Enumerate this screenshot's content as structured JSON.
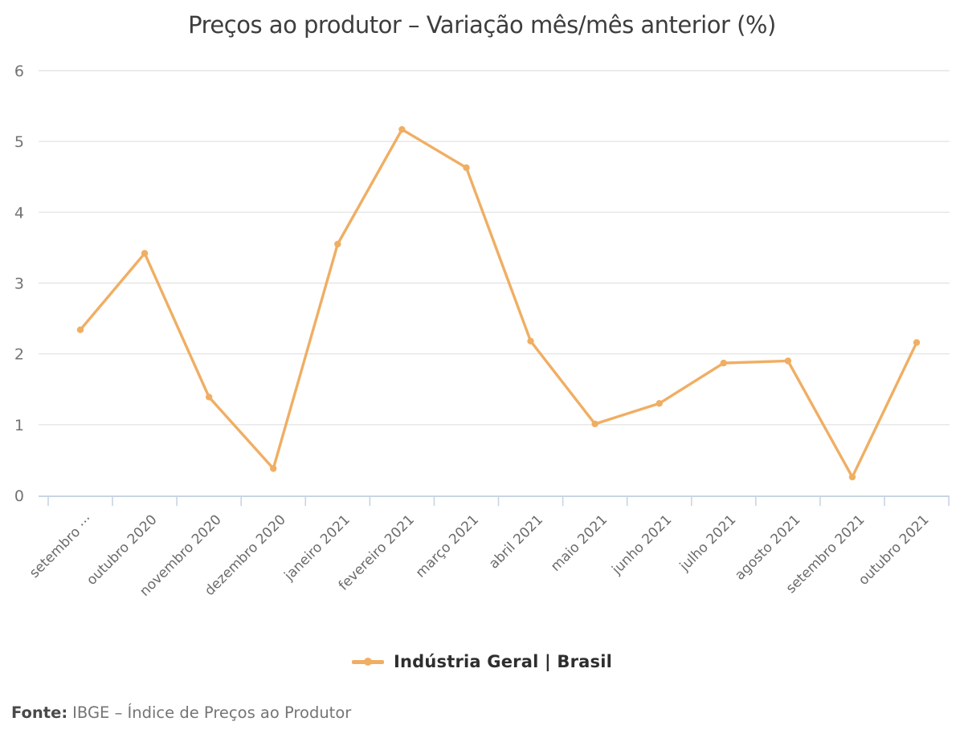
{
  "title": "Preços ao produtor – Variação mês/mês anterior (%)",
  "legend": {
    "label": "Indústria Geral | Brasil"
  },
  "footer": {
    "prefix": "Fonte:",
    "text": "IBGE – Índice de Preços ao Produtor"
  },
  "colors": {
    "series": "#F0AE63",
    "grid": "#E6E6E6",
    "axis": "#C8D4E3",
    "y_tick_label": "#737373",
    "x_tick_label": "#6B6B6B",
    "title": "#3D3D3D"
  },
  "chart_data": {
    "type": "line",
    "title": "Preços ao produtor – Variação mês/mês anterior (%)",
    "categories": [
      "setembro ···",
      "outubro 2020",
      "novembro 2020",
      "dezembro 2020",
      "janeiro 2021",
      "fevereiro 2021",
      "março 2021",
      "abril 2021",
      "maio 2021",
      "junho 2021",
      "julho 2021",
      "agosto 2021",
      "setembro 2021",
      "outubro 2021"
    ],
    "series": [
      {
        "name": "Indústria Geral | Brasil",
        "values": [
          2.34,
          3.42,
          1.39,
          0.38,
          3.55,
          5.17,
          4.63,
          2.18,
          1.01,
          1.3,
          1.87,
          1.9,
          0.26,
          2.16
        ],
        "color": "#F0AE63",
        "marker": "circle"
      }
    ],
    "xlabel": "",
    "ylabel": "",
    "ylim": [
      0,
      6
    ],
    "yticks": [
      0,
      1,
      2,
      3,
      4,
      5,
      6
    ],
    "grid": true,
    "legend_position": "bottom",
    "source": "Fonte: IBGE – Índice de Preços ao Produtor"
  }
}
